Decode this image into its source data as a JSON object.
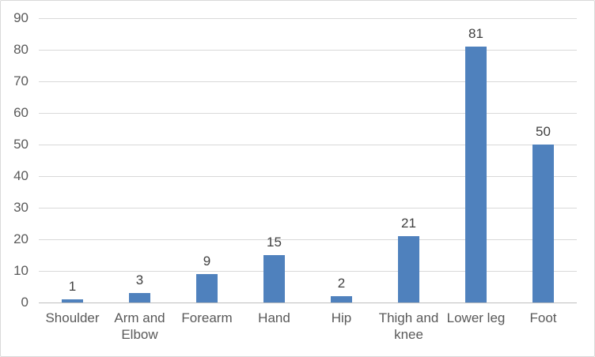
{
  "chart_data": {
    "type": "bar",
    "title": "",
    "xlabel": "",
    "ylabel": "",
    "categories": [
      "Shoulder",
      "Arm and Elbow",
      "Forearm",
      "Hand",
      "Hip",
      "Thigh and knee",
      "Lower leg",
      "Foot"
    ],
    "values": [
      1,
      3,
      9,
      15,
      2,
      21,
      81,
      50
    ],
    "ylim": [
      0,
      90
    ],
    "ytick_step": 10,
    "ytick_labels": [
      "0",
      "10",
      "20",
      "30",
      "40",
      "50",
      "60",
      "70",
      "80",
      "90"
    ],
    "data_labels": [
      "1",
      "3",
      "9",
      "15",
      "2",
      "21",
      "81",
      "50"
    ],
    "grid": true,
    "legend": false,
    "colors": {
      "bar": "#4F81BD",
      "gridline": "#D9D9D9",
      "axis_line": "#BFBFBF",
      "tick_label_text": "#595959",
      "category_label_text": "#595959",
      "data_label_text": "#404040",
      "frame_border": "#D9D9D9",
      "background": "#FFFFFF"
    }
  }
}
